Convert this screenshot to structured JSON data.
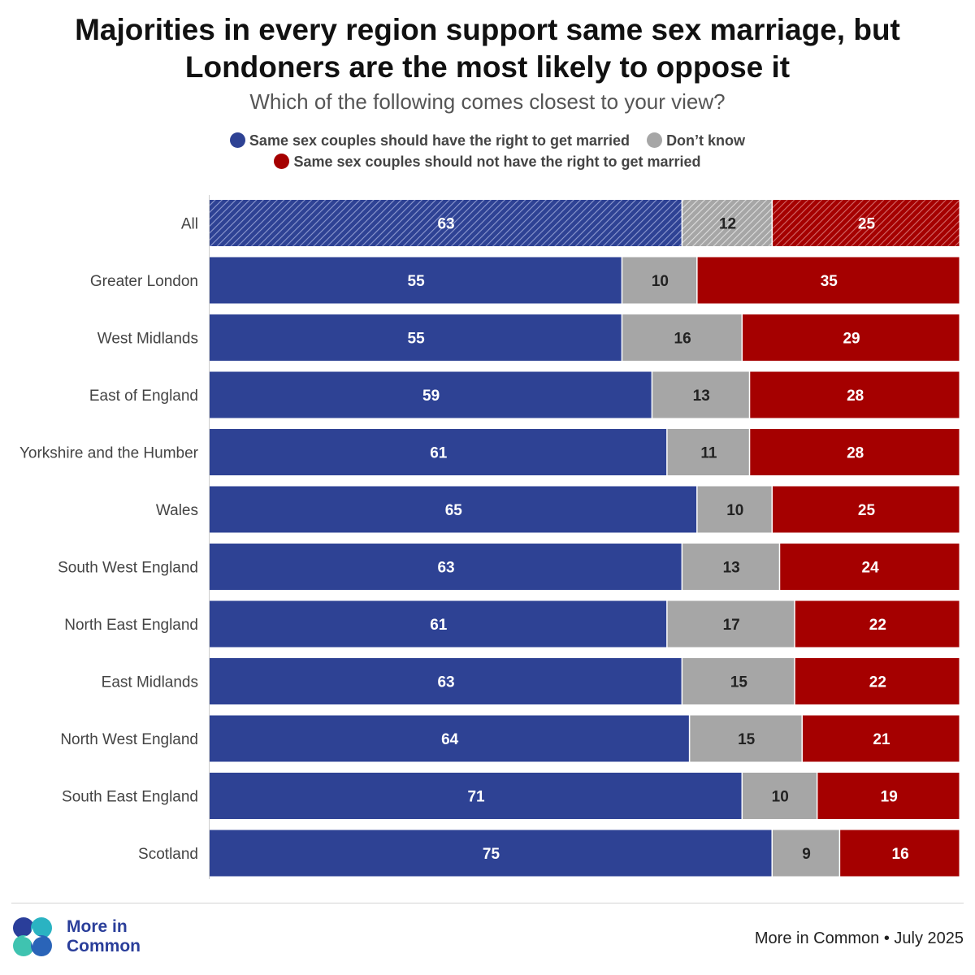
{
  "header": {
    "title": "Majorities in every region support same sex marriage, but Londoners are the most likely to oppose it",
    "subtitle": "Which of the following comes closest to your view?"
  },
  "colors": {
    "support": "#2e4294",
    "dont_know": "#a6a6a6",
    "oppose": "#a50000",
    "label_light": "#ffffff",
    "label_dark": "#222222"
  },
  "chart_data": {
    "type": "bar",
    "orientation": "horizontal",
    "stacked": true,
    "normalized_to": 100,
    "title": "Majorities in every region support same sex marriage, but Londoners are the most likely to oppose it",
    "subtitle": "Which of the following comes closest to your view?",
    "xlim": [
      0,
      100
    ],
    "grid": false,
    "legend_position": "top-center",
    "highlighted_category": "All",
    "categories": [
      "All",
      "Greater London",
      "West Midlands",
      "East of England",
      "Yorkshire and the Humber",
      "Wales",
      "South West England",
      "North East England",
      "East Midlands",
      "North West England",
      "South East England",
      "Scotland"
    ],
    "series": [
      {
        "name": "Same sex couples should have the right to get married",
        "values": [
          63,
          55,
          55,
          59,
          61,
          65,
          63,
          61,
          63,
          64,
          71,
          75
        ]
      },
      {
        "name": "Don’t know",
        "values": [
          12,
          10,
          16,
          13,
          11,
          10,
          13,
          17,
          15,
          15,
          10,
          9
        ]
      },
      {
        "name": "Same sex couples should not have the right to get married",
        "values": [
          25,
          35,
          29,
          28,
          28,
          25,
          24,
          22,
          22,
          21,
          19,
          16
        ]
      }
    ]
  },
  "logo": {
    "text": "More in\nCommon"
  },
  "footer": {
    "source": "More in Common • July 2025"
  }
}
